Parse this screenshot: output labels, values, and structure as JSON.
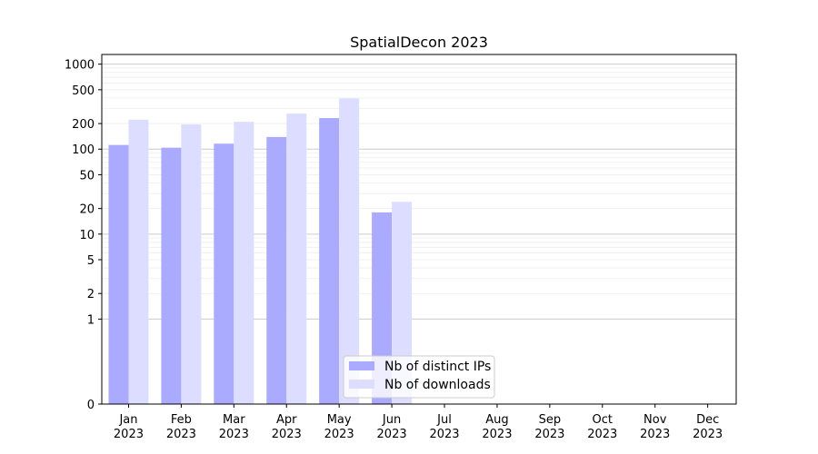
{
  "chart_data": {
    "type": "bar",
    "title": "SpatialDecon 2023",
    "xlabel": "",
    "ylabel": "",
    "yscale": "symlog",
    "ylim": [
      0,
      1300
    ],
    "yticks": [
      0,
      1,
      2,
      5,
      10,
      20,
      50,
      100,
      200,
      500,
      1000
    ],
    "grid": true,
    "legend_position": "bottom-center",
    "categories": [
      "Jan\n2023",
      "Feb\n2023",
      "Mar\n2023",
      "Apr\n2023",
      "May\n2023",
      "Jun\n2023",
      "Jul\n2023",
      "Aug\n2023",
      "Sep\n2023",
      "Oct\n2023",
      "Nov\n2023",
      "Dec\n2023"
    ],
    "series": [
      {
        "name": "Nb of distinct IPs",
        "color": "#aaaaff",
        "values": [
          112,
          104,
          116,
          139,
          232,
          18,
          null,
          null,
          null,
          null,
          null,
          null
        ]
      },
      {
        "name": "Nb of downloads",
        "color": "#ddddff",
        "values": [
          222,
          195,
          210,
          262,
          395,
          24,
          null,
          null,
          null,
          null,
          null,
          null
        ]
      }
    ]
  }
}
